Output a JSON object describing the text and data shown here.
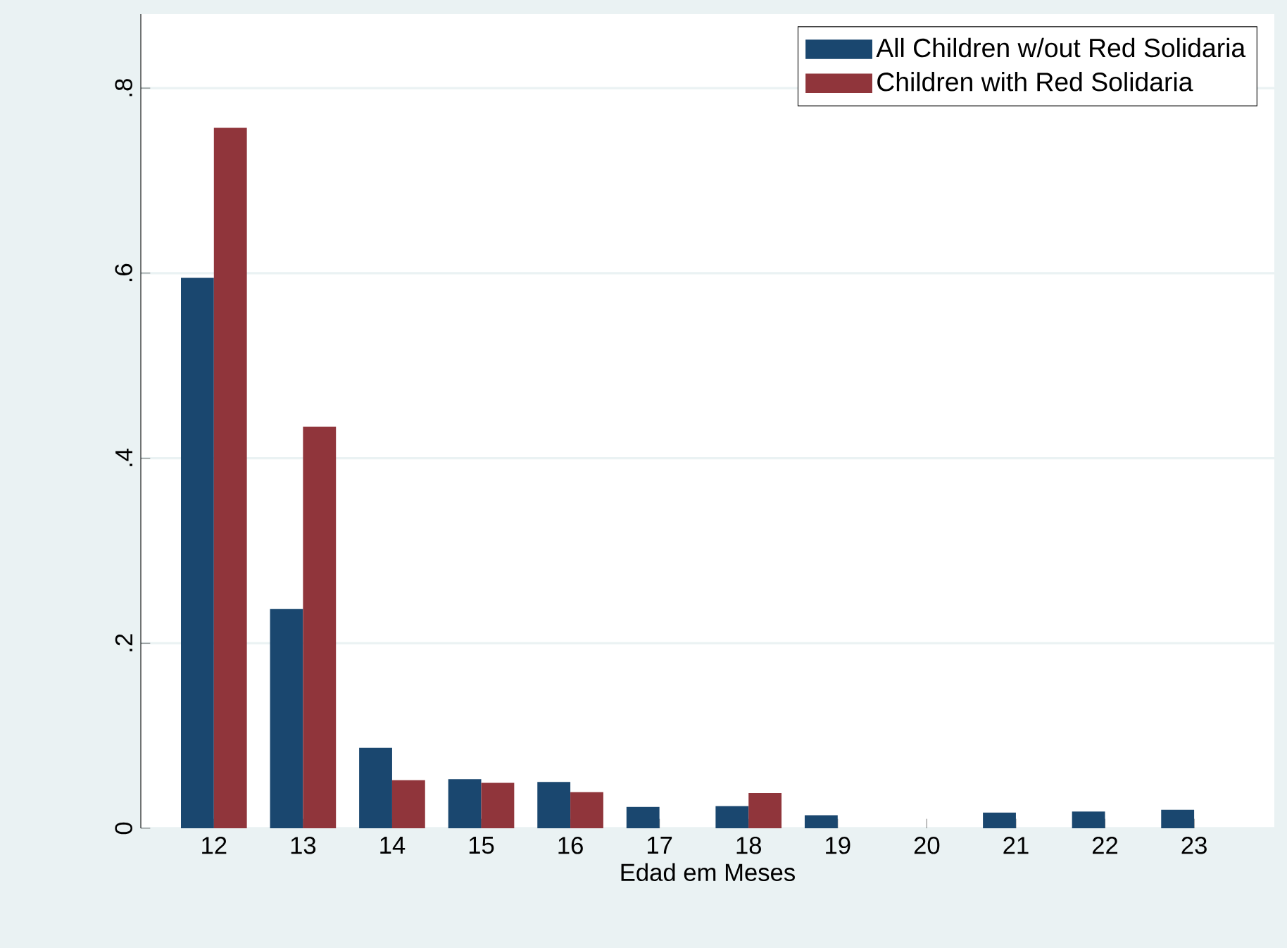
{
  "chart_data": {
    "type": "bar",
    "xlabel": "Edad em Meses",
    "categories": [
      "12",
      "13",
      "14",
      "15",
      "16",
      "17",
      "18",
      "19",
      "20",
      "21",
      "22",
      "23"
    ],
    "series": [
      {
        "name": "All Children w/out Red Solidaria",
        "color": "#1a476f",
        "values": [
          0.595,
          0.237,
          0.087,
          0.053,
          0.05,
          0.023,
          0.024,
          0.014,
          null,
          0.017,
          0.018,
          0.02
        ]
      },
      {
        "name": "Children with Red Solidaria",
        "color": "#90353b",
        "values": [
          0.757,
          0.434,
          0.052,
          0.049,
          0.039,
          null,
          0.038,
          null,
          null,
          null,
          null,
          null
        ]
      }
    ],
    "ylim": [
      0,
      0.88
    ],
    "yticks": [
      {
        "value": 0,
        "label": "0"
      },
      {
        "value": 0.2,
        "label": ".2"
      },
      {
        "value": 0.4,
        "label": ".4"
      },
      {
        "value": 0.6,
        "label": ".6"
      },
      {
        "value": 0.8,
        "label": ".8"
      }
    ],
    "grid": "y",
    "legend": "top right"
  }
}
